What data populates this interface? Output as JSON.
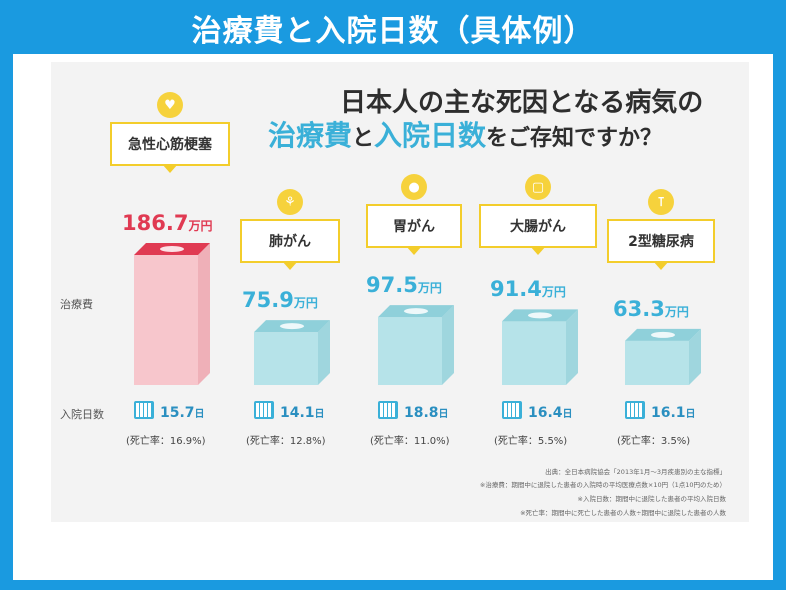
{
  "page": {
    "banner_title": "治療費と入院日数（具体例）",
    "headline_line1": "日本人の主な死因となる病気の",
    "headline_line2": {
      "part1": "治療費",
      "part2": "と",
      "part3": "入院日数",
      "part4": "をご存知ですか？"
    },
    "row_label_cost": "治療費",
    "row_label_days": "入院日数",
    "notes": [
      "出典：全日本病院協会「2013年1月〜3月疾患別の主な指標」",
      "※治療費：期間中に退院した患者の入院時の平均医療点数×10円（1点10円のため）",
      "※入院日数：期間中に退院した患者の平均入院日数",
      "※死亡率：期間中に死亡した患者の人数÷期間中に退院した患者の人数"
    ],
    "colors": {
      "frame": "#1a9ae0",
      "highlight_bar": "#f7c6cc",
      "highlight_bar_top": "#e03a52",
      "bar": "#b6e3e9",
      "bar_top": "#8fd0da",
      "cost_text_highlight": "#e03a52",
      "cost_text": "#3ab0d8",
      "label_border": "#f3cd2b"
    }
  },
  "chart_data": {
    "type": "bar",
    "categories": [
      "急性心筋梗塞",
      "肺がん",
      "胃がん",
      "大腸がん",
      "2型糖尿病"
    ],
    "series": [
      {
        "name": "治療費",
        "values": [
          186.7,
          75.9,
          97.5,
          91.4,
          63.3
        ],
        "labels": [
          "186.7",
          "75.9",
          "97.5",
          "91.4",
          "63.3"
        ],
        "unit": "万円"
      },
      {
        "name": "入院日数",
        "values": [
          15.7,
          14.1,
          18.8,
          16.4,
          16.1
        ],
        "labels": [
          "15.7",
          "14.1",
          "18.8",
          "16.4",
          "16.1"
        ],
        "unit": "日"
      }
    ],
    "mortality_labels": [
      "(死亡率：16.9%)",
      "(死亡率：12.8%)",
      "(死亡率：11.0%)",
      "(死亡率：5.5%)",
      "(死亡率：3.5%)"
    ],
    "icons": [
      "heart-bottle-icon",
      "lungs-icon",
      "stomach-drop-icon",
      "intestine-icon",
      "test-tube-icon"
    ],
    "icon_glyphs": [
      "♥",
      "⚘",
      "●",
      "▢",
      "⊺"
    ],
    "highlight_index": 0
  }
}
